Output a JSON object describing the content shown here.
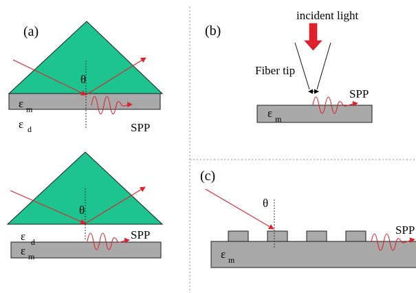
{
  "colors": {
    "prism": "#1dc48f",
    "metal": "#a9a9a9",
    "light": "#e0202a",
    "divider": "#8a8a8a"
  },
  "panel_a": {
    "label": "(a)",
    "theta": "θ",
    "eps_m": {
      "symbol": "ε",
      "sub": "m"
    },
    "eps_d": {
      "symbol": "ε",
      "sub": "d"
    },
    "spp": "SPP"
  },
  "panel_a2": {
    "theta": "θ",
    "eps_d": {
      "symbol": "ε",
      "sub": "d"
    },
    "eps_m": {
      "symbol": "ε",
      "sub": "m"
    },
    "spp": "SPP"
  },
  "panel_b": {
    "label": "(b)",
    "incident": "incident light",
    "fiber": "Fiber tip",
    "eps_m": {
      "symbol": "ε",
      "sub": "m"
    },
    "spp": "SPP"
  },
  "panel_c": {
    "label": "(c)",
    "theta": "θ",
    "eps_m": {
      "symbol": "ε",
      "sub": "m"
    },
    "spp": "SPP"
  }
}
